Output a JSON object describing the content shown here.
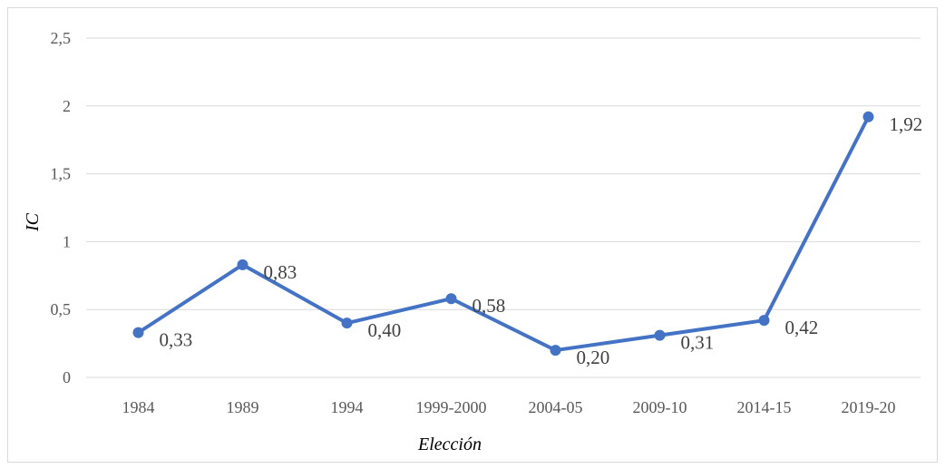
{
  "chart_data": {
    "type": "line",
    "xlabel": "Elección",
    "ylabel": "IC",
    "categories": [
      "1984",
      "1989",
      "1994",
      "1999-2000",
      "2004-05",
      "2009-10",
      "2014-15",
      "2019-20"
    ],
    "series": [
      {
        "values": [
          0.33,
          0.83,
          0.4,
          0.58,
          0.2,
          0.31,
          0.42,
          1.92
        ],
        "data_labels": [
          "0,33",
          "0,83",
          "0,40",
          "0,58",
          "0,20",
          "0,31",
          "0,42",
          "1,92"
        ],
        "color": "#4472c4"
      }
    ],
    "ylim": [
      0,
      2.5
    ],
    "yticks": [
      0,
      0.5,
      1,
      1.5,
      2,
      2.5
    ],
    "ytick_labels": [
      "0",
      "0,5",
      "1",
      "1,5",
      "2",
      "2,5"
    ],
    "grid": true,
    "grid_color": "#d9d9d9",
    "legend": false
  }
}
